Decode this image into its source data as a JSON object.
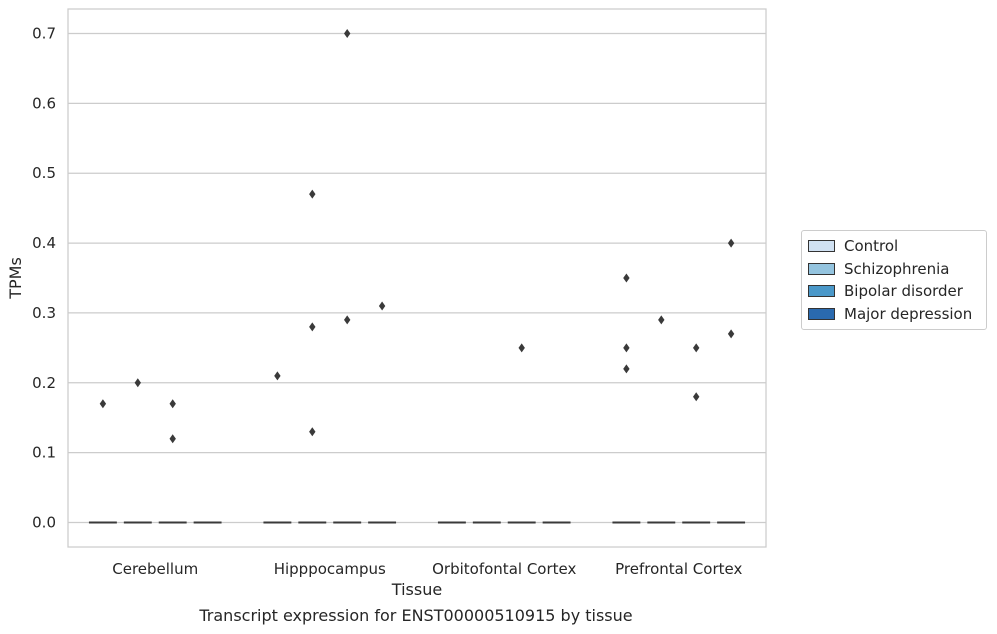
{
  "chart_data": {
    "type": "box",
    "title": "",
    "xlabel": "Tissue",
    "ylabel": "TPMs",
    "caption": "Transcript expression for ENST00000510915 by tissue",
    "ylim": [
      -0.035,
      0.735
    ],
    "yticks": [
      0.0,
      0.1,
      0.2,
      0.3,
      0.4,
      0.5,
      0.6,
      0.7
    ],
    "ytick_labels": [
      "0.0",
      "0.1",
      "0.2",
      "0.3",
      "0.4",
      "0.5",
      "0.6",
      "0.7"
    ],
    "grid": true,
    "legend_position": "right",
    "categories": [
      "Cerebellum",
      "Hipppocampus",
      "Orbitofontal Cortex",
      "Prefrontal Cortex"
    ],
    "series": [
      {
        "name": "Control",
        "color": "#d0e1f2",
        "median": [
          0,
          0,
          0,
          0
        ],
        "outliers": [
          [
            0.17
          ],
          [
            0.21
          ],
          [],
          [
            0.35,
            0.25,
            0.22
          ]
        ]
      },
      {
        "name": "Schizophrenia",
        "color": "#94c4df",
        "median": [
          0,
          0,
          0,
          0
        ],
        "outliers": [
          [
            0.2
          ],
          [
            0.47,
            0.28,
            0.13
          ],
          [],
          [
            0.29
          ]
        ]
      },
      {
        "name": "Bipolar disorder",
        "color": "#4a98c9",
        "median": [
          0,
          0,
          0,
          0
        ],
        "outliers": [
          [
            0.17,
            0.12
          ],
          [
            0.7,
            0.29
          ],
          [
            0.25
          ],
          [
            0.25,
            0.18
          ]
        ]
      },
      {
        "name": "Major depression",
        "color": "#2a6aaf",
        "median": [
          0,
          0,
          0,
          0
        ],
        "outliers": [
          [],
          [
            0.31
          ],
          [],
          [
            0.4,
            0.27
          ]
        ]
      }
    ]
  }
}
